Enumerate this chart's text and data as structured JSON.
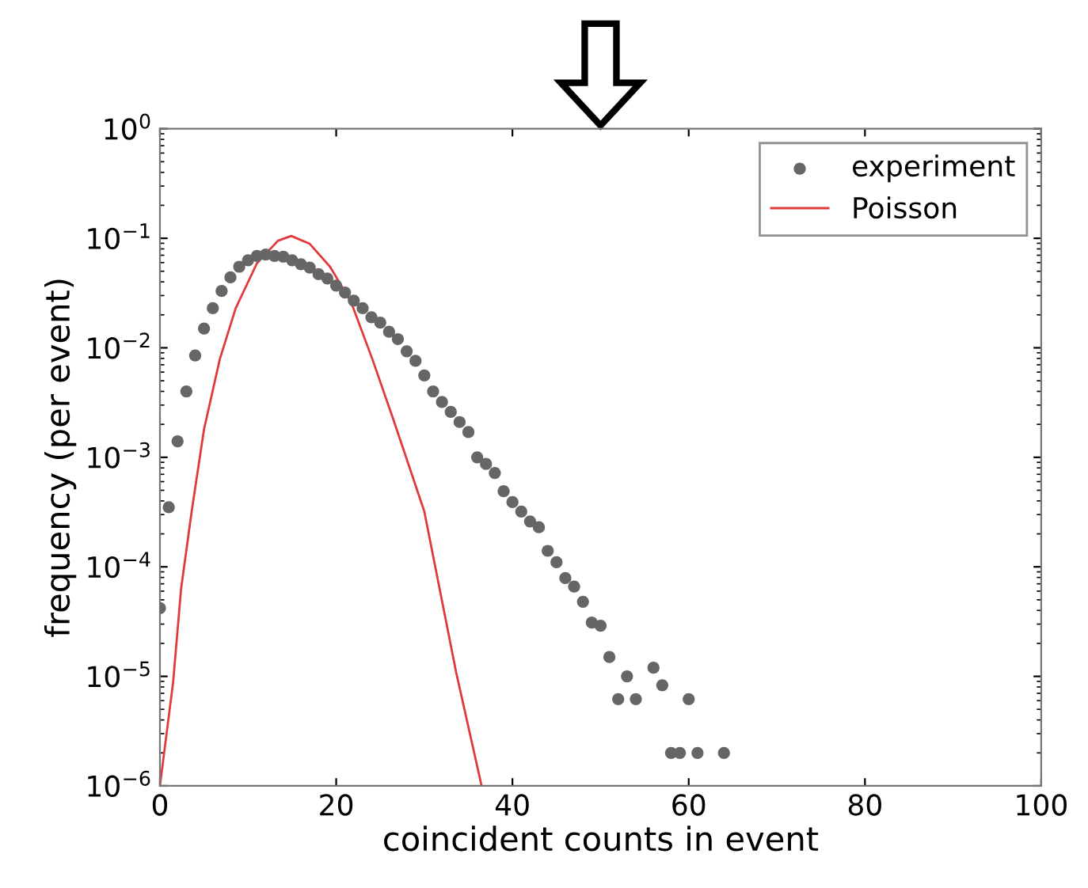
{
  "chart_data": {
    "type": "scatter",
    "xlabel": "coincident counts in event",
    "ylabel": "frequency (per event)",
    "log": "y",
    "xlim": [
      0,
      100
    ],
    "xticks": [
      0,
      20,
      40,
      60,
      80,
      100
    ],
    "ylim": [
      1e-06,
      1
    ],
    "yticks": [
      {
        "value": 1e-06,
        "label": "10$^{−6}$"
      },
      {
        "value": 1e-05,
        "label": "10$^{−5}$"
      },
      {
        "value": 0.0001,
        "label": "10$^{−4}$"
      },
      {
        "value": 0.001,
        "label": "10$^{−3}$"
      },
      {
        "value": 0.01,
        "label": "10$^{−2}$"
      },
      {
        "value": 0.1,
        "label": "10$^{−1}$"
      },
      {
        "value": 1,
        "label": "10$^{0}$"
      }
    ],
    "grid": false,
    "legend": "top right",
    "series": [
      {
        "name": "experiment",
        "marker": "circle",
        "color": "#666666",
        "x": [
          0,
          1,
          2,
          3,
          4,
          5,
          6,
          7,
          8,
          9,
          10,
          11,
          12,
          13,
          14,
          15,
          16,
          17,
          18,
          19,
          20,
          21,
          22,
          23,
          24,
          25,
          26,
          27,
          28,
          29,
          30,
          31,
          32,
          33,
          34,
          35,
          36,
          37,
          38,
          39,
          40,
          41,
          42,
          43,
          44,
          45,
          46,
          47,
          48,
          49,
          50,
          51,
          52,
          53,
          54,
          56,
          57,
          58,
          59,
          60,
          61,
          64
        ],
        "values": [
          4.2e-05,
          0.00035,
          0.0014,
          0.004,
          0.0085,
          0.015,
          0.023,
          0.033,
          0.044,
          0.055,
          0.063,
          0.069,
          0.071,
          0.069,
          0.068,
          0.063,
          0.058,
          0.054,
          0.047,
          0.043,
          0.037,
          0.032,
          0.027,
          0.023,
          0.019,
          0.017,
          0.014,
          0.012,
          0.0093,
          0.0076,
          0.0056,
          0.004,
          0.0032,
          0.0026,
          0.0021,
          0.0017,
          0.001,
          0.00087,
          0.00072,
          0.00049,
          0.00039,
          0.00032,
          0.00026,
          0.00023,
          0.00014,
          0.00011,
          7.9e-05,
          6.6e-05,
          4.8e-05,
          3.1e-05,
          2.9e-05,
          1.5e-05,
          6.2e-06,
          1e-05,
          6.2e-06,
          1.2e-05,
          8.3e-06,
          2e-06,
          2e-06,
          6.2e-06,
          2e-06,
          2e-06
        ]
      },
      {
        "name": "Poisson",
        "type": "line",
        "marker": "none",
        "line_style": "solid",
        "color": "#e03a3a",
        "x": [
          0,
          1.5,
          2.4,
          3.6,
          5,
          6.8,
          8.6,
          11,
          13.4,
          14.9,
          17,
          19.3,
          21.7,
          24.1,
          26.5,
          30,
          33.6,
          36.5
        ],
        "values": [
          1e-06,
          8.9e-06,
          6.3e-05,
          0.00032,
          0.0018,
          0.0079,
          0.023,
          0.059,
          0.095,
          0.105,
          0.089,
          0.055,
          0.026,
          0.0079,
          0.0022,
          0.00032,
          1.1e-05,
          1e-06
        ]
      }
    ]
  }
}
